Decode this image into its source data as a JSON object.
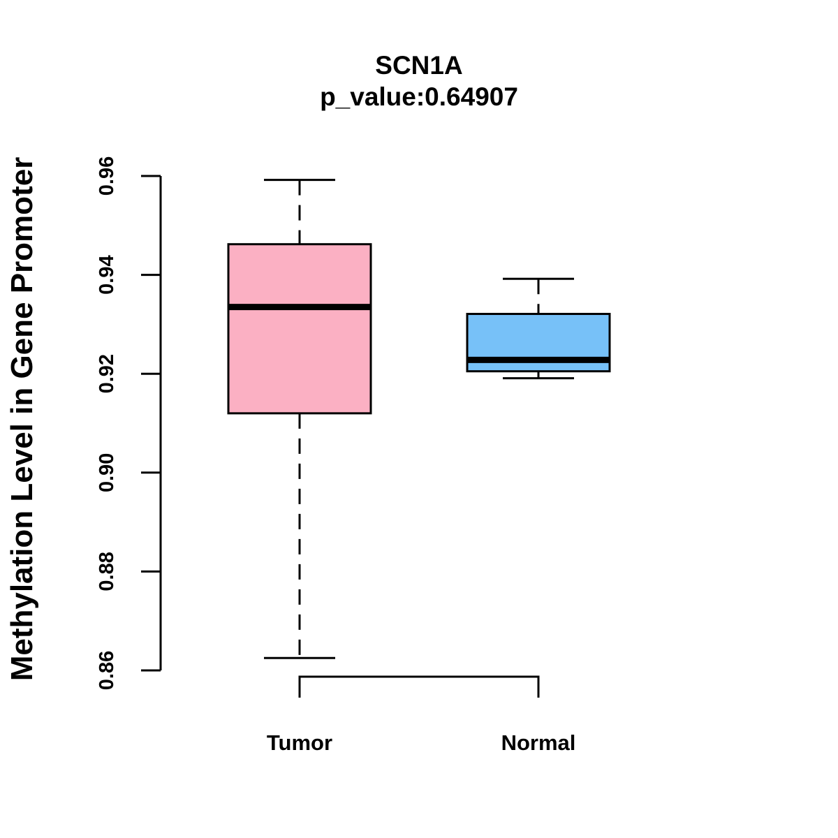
{
  "chart_data": {
    "type": "box",
    "title": "SCN1A",
    "subtitle": "p_value:0.64907",
    "xlabel": "",
    "ylabel": "Methylation Level in Gene Promoter",
    "ylim": [
      0.86,
      0.96
    ],
    "yticks": [
      "0.86",
      "0.88",
      "0.90",
      "0.92",
      "0.94",
      "0.96"
    ],
    "grid": false,
    "categories": [
      "Tumor",
      "Normal"
    ],
    "boxes": [
      {
        "category": "Tumor",
        "whisker_low": 0.8625,
        "q1": 0.912,
        "median": 0.9335,
        "q3": 0.9462,
        "whisker_high": 0.9592,
        "color": "#FBB0C3"
      },
      {
        "category": "Normal",
        "whisker_low": 0.9191,
        "q1": 0.9205,
        "median": 0.9228,
        "q3": 0.9321,
        "whisker_high": 0.9392,
        "color": "#77C1F8"
      }
    ],
    "significance_bracket": {
      "from": "Tumor",
      "to": "Normal",
      "label": ""
    }
  }
}
